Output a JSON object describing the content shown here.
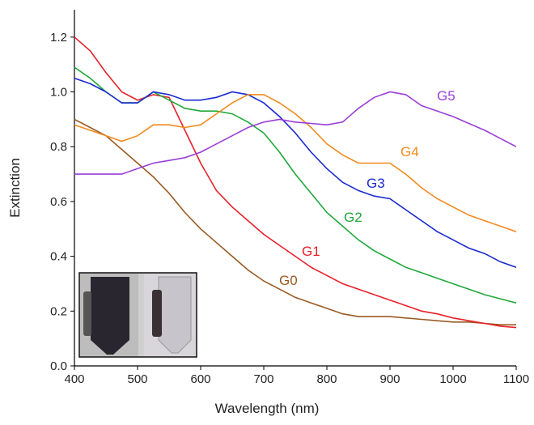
{
  "chart_data": {
    "type": "line",
    "xlabel": "Wavelength (nm)",
    "ylabel": "Extinction",
    "xlim": [
      400,
      1100
    ],
    "ylim": [
      0,
      1.3
    ],
    "xticks": [
      400,
      500,
      600,
      700,
      800,
      900,
      1000,
      1100
    ],
    "yticks": [
      {
        "value": 0,
        "label": "0.0"
      },
      0.2,
      0.4,
      0.6,
      0.8,
      {
        "value": 1,
        "label": "1.0"
      },
      1.2
    ],
    "x": [
      400,
      425,
      450,
      475,
      500,
      525,
      550,
      575,
      600,
      625,
      650,
      675,
      700,
      725,
      750,
      775,
      800,
      825,
      850,
      875,
      900,
      925,
      950,
      975,
      1000,
      1025,
      1050,
      1075,
      1100
    ],
    "series": [
      {
        "name": "G0",
        "color": "#9a5a22",
        "values": [
          0.9,
          0.87,
          0.84,
          0.79,
          0.74,
          0.69,
          0.63,
          0.56,
          0.5,
          0.45,
          0.4,
          0.35,
          0.31,
          0.28,
          0.25,
          0.23,
          0.21,
          0.19,
          0.18,
          0.18,
          0.18,
          0.175,
          0.17,
          0.165,
          0.16,
          0.16,
          0.155,
          0.15,
          0.15
        ]
      },
      {
        "name": "G1",
        "color": "#e8202a",
        "values": [
          1.2,
          1.15,
          1.07,
          1.0,
          0.97,
          0.99,
          0.98,
          0.86,
          0.74,
          0.64,
          0.58,
          0.53,
          0.48,
          0.44,
          0.4,
          0.36,
          0.33,
          0.3,
          0.28,
          0.26,
          0.24,
          0.22,
          0.2,
          0.19,
          0.175,
          0.165,
          0.155,
          0.145,
          0.14
        ]
      },
      {
        "name": "G2",
        "color": "#1fa83a",
        "values": [
          1.09,
          1.05,
          1.0,
          0.96,
          0.96,
          1.0,
          0.97,
          0.94,
          0.93,
          0.93,
          0.92,
          0.89,
          0.85,
          0.78,
          0.7,
          0.63,
          0.56,
          0.51,
          0.46,
          0.42,
          0.39,
          0.36,
          0.34,
          0.32,
          0.3,
          0.28,
          0.26,
          0.245,
          0.23
        ]
      },
      {
        "name": "G3",
        "color": "#1a2ad0",
        "values": [
          1.05,
          1.03,
          1.0,
          0.96,
          0.96,
          1.0,
          0.99,
          0.97,
          0.97,
          0.98,
          1.0,
          0.99,
          0.96,
          0.91,
          0.85,
          0.78,
          0.72,
          0.67,
          0.64,
          0.62,
          0.61,
          0.57,
          0.53,
          0.49,
          0.46,
          0.43,
          0.41,
          0.38,
          0.36
        ]
      },
      {
        "name": "G4",
        "color": "#f28a1e",
        "values": [
          0.88,
          0.86,
          0.84,
          0.82,
          0.84,
          0.88,
          0.88,
          0.87,
          0.88,
          0.92,
          0.96,
          0.99,
          0.99,
          0.96,
          0.92,
          0.87,
          0.81,
          0.77,
          0.74,
          0.74,
          0.74,
          0.7,
          0.65,
          0.61,
          0.58,
          0.55,
          0.53,
          0.51,
          0.49
        ]
      },
      {
        "name": "G5",
        "color": "#9a3fd8",
        "values": [
          0.7,
          0.7,
          0.7,
          0.7,
          0.72,
          0.74,
          0.75,
          0.76,
          0.78,
          0.81,
          0.84,
          0.87,
          0.89,
          0.9,
          0.89,
          0.885,
          0.88,
          0.89,
          0.94,
          0.98,
          1.0,
          0.99,
          0.95,
          0.93,
          0.91,
          0.885,
          0.86,
          0.83,
          0.8
        ]
      }
    ]
  }
}
